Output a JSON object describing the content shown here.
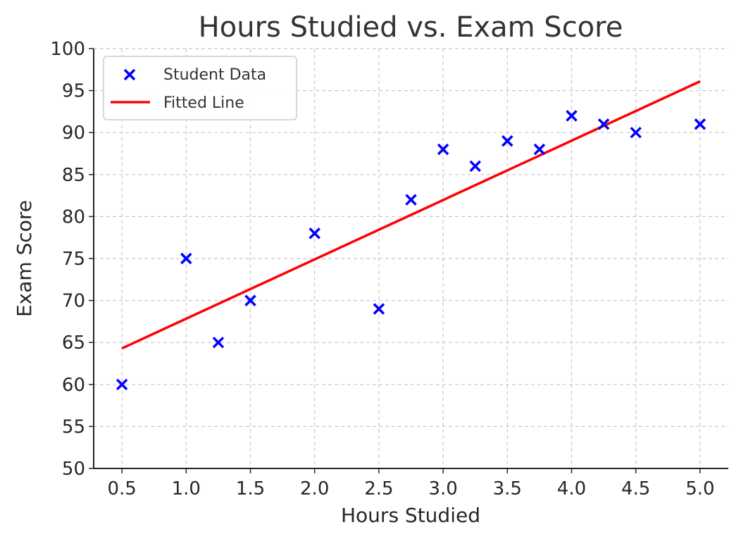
{
  "chart_data": {
    "type": "scatter",
    "title": "Hours Studied vs. Exam Score",
    "xlabel": "Hours Studied",
    "ylabel": "Exam Score",
    "xlim": [
      0.28,
      5.22
    ],
    "ylim": [
      50,
      100
    ],
    "x_ticks": [
      "0.5",
      "1.0",
      "1.5",
      "2.0",
      "2.5",
      "3.0",
      "3.5",
      "4.0",
      "4.5",
      "5.0"
    ],
    "y_ticks": [
      "50",
      "55",
      "60",
      "65",
      "70",
      "75",
      "80",
      "85",
      "90",
      "95",
      "100"
    ],
    "grid": true,
    "legend_position": "top-left",
    "series": [
      {
        "name": "Student Data",
        "kind": "scatter",
        "marker": "x",
        "color": "#0000ff",
        "x": [
          0.5,
          1.0,
          1.25,
          1.5,
          2.0,
          2.5,
          2.75,
          3.0,
          3.25,
          3.5,
          3.75,
          4.0,
          4.25,
          4.5,
          5.0
        ],
        "y": [
          60,
          75,
          65,
          70,
          78,
          69,
          82,
          88,
          86,
          89,
          88,
          92,
          91,
          90,
          91
        ]
      },
      {
        "name": "Fitted Line",
        "kind": "line",
        "color": "#ff0000",
        "x": [
          0.5,
          5.0
        ],
        "y": [
          64.3,
          96.1
        ]
      }
    ]
  }
}
